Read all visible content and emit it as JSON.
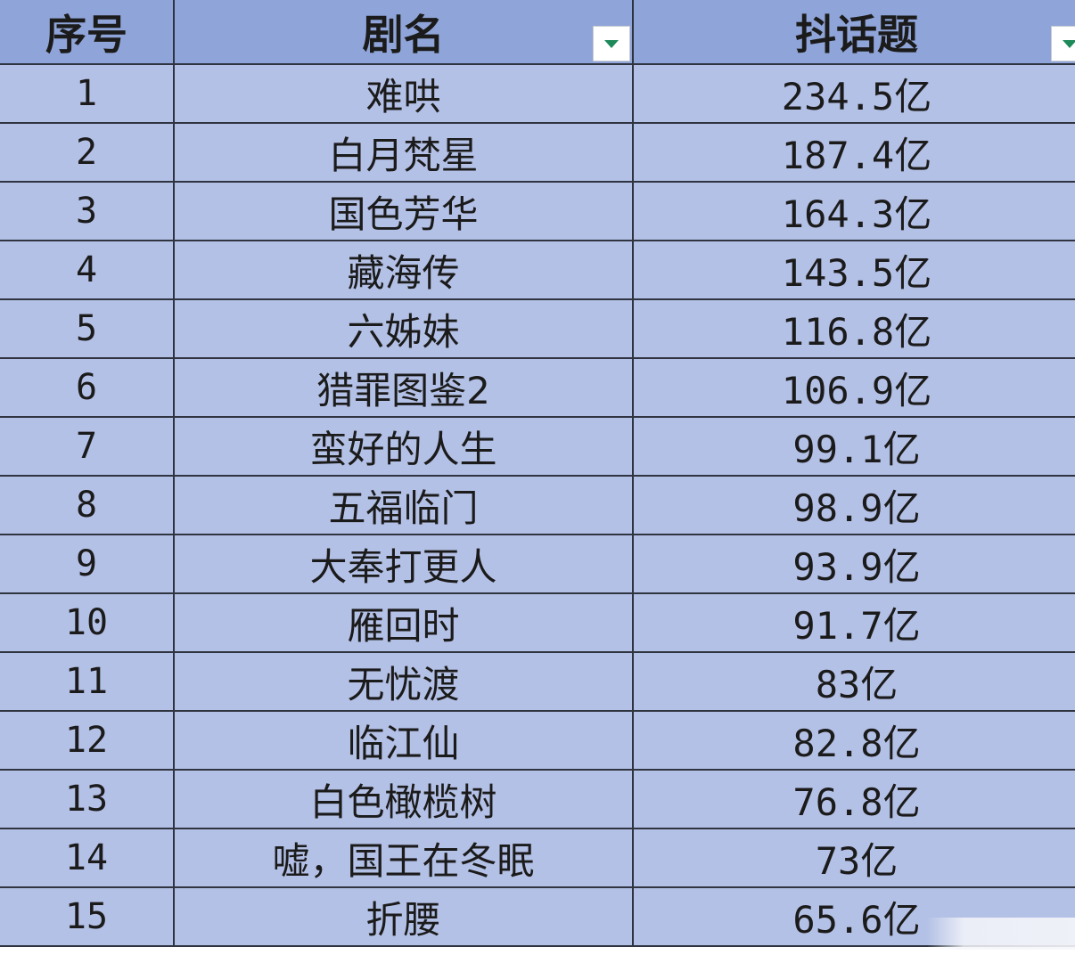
{
  "table": {
    "headers": {
      "index": "序号",
      "name": "剧名",
      "topic": "抖话题"
    },
    "rows": [
      {
        "index": "1",
        "name": "难哄",
        "topic": "234.5亿"
      },
      {
        "index": "2",
        "name": "白月梵星",
        "topic": "187.4亿"
      },
      {
        "index": "3",
        "name": "国色芳华",
        "topic": "164.3亿"
      },
      {
        "index": "4",
        "name": "藏海传",
        "topic": "143.5亿"
      },
      {
        "index": "5",
        "name": "六姊妹",
        "topic": "116.8亿"
      },
      {
        "index": "6",
        "name": "猎罪图鉴2",
        "topic": "106.9亿"
      },
      {
        "index": "7",
        "name": "蛮好的人生",
        "topic": "99.1亿"
      },
      {
        "index": "8",
        "name": "五福临门",
        "topic": "98.9亿"
      },
      {
        "index": "9",
        "name": "大奉打更人",
        "topic": "93.9亿"
      },
      {
        "index": "10",
        "name": "雁回时",
        "topic": "91.7亿"
      },
      {
        "index": "11",
        "name": "无忧渡",
        "topic": "83亿"
      },
      {
        "index": "12",
        "name": "临江仙",
        "topic": "82.8亿"
      },
      {
        "index": "13",
        "name": "白色橄榄树",
        "topic": "76.8亿"
      },
      {
        "index": "14",
        "name": "嘘，国王在冬眠",
        "topic": "73亿"
      },
      {
        "index": "15",
        "name": "折腰",
        "topic": "65.6亿"
      }
    ]
  },
  "icons": {
    "filter": "filter-dropdown-icon"
  },
  "colors": {
    "header_bg": "#8fa4d8",
    "row_bg": "#b4c1e6",
    "grid": "#2f3440",
    "filter_arrow": "#1e8a5a"
  }
}
